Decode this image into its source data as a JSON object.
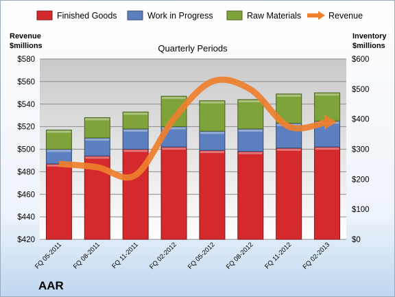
{
  "chart_data": {
    "type": "bar",
    "stacked": true,
    "title": "Quarterly Periods",
    "brand": "AAR",
    "categories": [
      "FQ 05-2011",
      "FQ 08-2011",
      "FQ 11-2011",
      "FQ 02-2012",
      "FQ 05-2012",
      "FQ 08-2012",
      "FQ 11-2012",
      "FQ 02-2013"
    ],
    "series": [
      {
        "name": "Finished Goods",
        "color": "#d42a2e",
        "values": [
          487,
          494,
          500,
          502,
          499,
          498,
          501,
          502
        ]
      },
      {
        "name": "Work in Progress",
        "color": "#5b7fbf",
        "values": [
          13,
          16,
          18,
          18,
          17,
          20,
          22,
          23
        ]
      },
      {
        "name": "Raw Materials",
        "color": "#7ea33a",
        "values": [
          17,
          18,
          15,
          27,
          27,
          26,
          26,
          25
        ]
      }
    ],
    "line_series": {
      "name": "Revenue",
      "color": "#ee7f2d",
      "values": [
        487,
        484,
        477,
        527,
        560,
        553,
        520,
        524
      ],
      "axis": "left"
    },
    "ylabel_left": "Revenue\n$millions",
    "ylabel_right": "Inventory\n$millions",
    "ylim_left": [
      420,
      580
    ],
    "yticks_left": [
      "$420",
      "$440",
      "$460",
      "$480",
      "$500",
      "$520",
      "$540",
      "$560",
      "$580"
    ],
    "ylim_right": [
      0,
      600
    ],
    "yticks_right": [
      "$0",
      "$100",
      "$200",
      "$300",
      "$400",
      "$500",
      "$600"
    ],
    "grid": true,
    "legend_position": "top"
  }
}
